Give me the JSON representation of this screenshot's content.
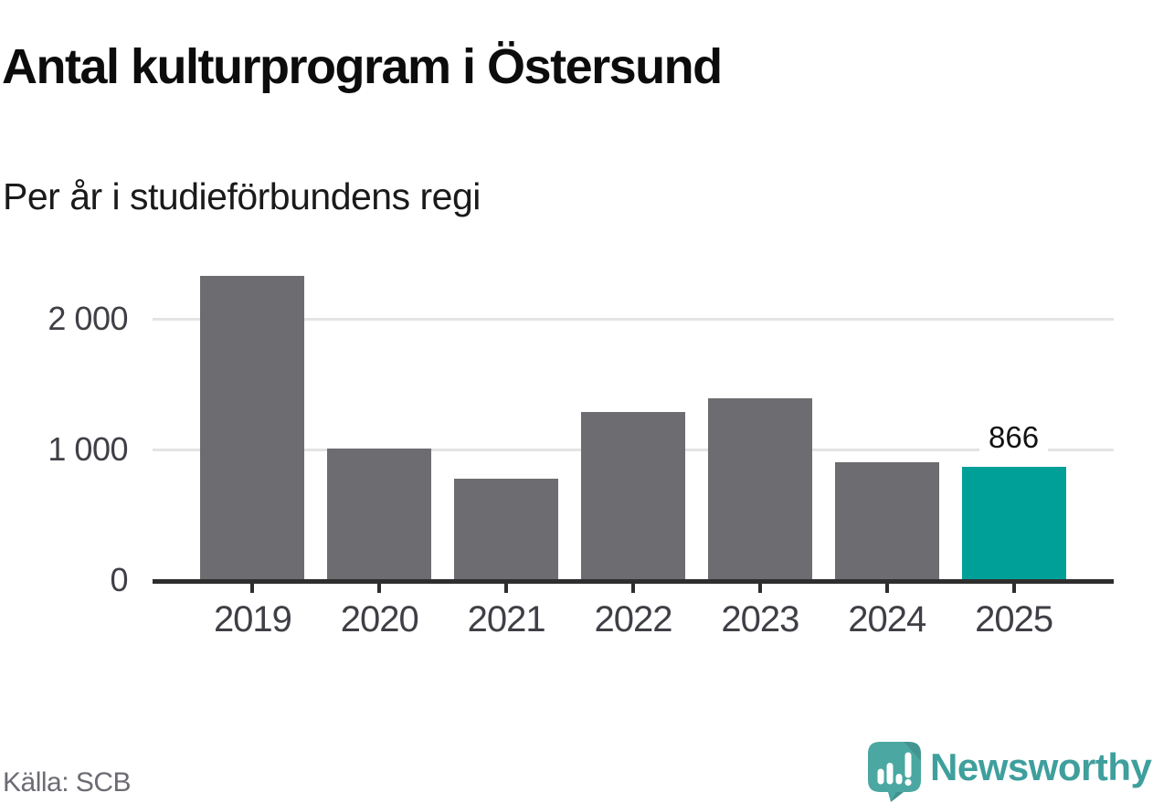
{
  "header": {
    "title": "Antal kulturprogram i Östersund",
    "subtitle": "Per år i studieförbundens regi"
  },
  "footer": {
    "source": "Källa: SCB",
    "brand_name": "Newsworthy"
  },
  "colors": {
    "bar": "#6d6d71",
    "highlight": "#00a099",
    "axis": "#2e2e2e",
    "gridline": "#e4e4e4",
    "tick_label": "#3f3f46",
    "source_text": "#6b6b73",
    "brand_teal": "#3f9f9d",
    "logo_bubble": "#4ba7a1"
  },
  "chart_data": {
    "type": "bar",
    "title": "Antal kulturprogram i Östersund",
    "subtitle": "Per år i studieförbundens regi",
    "categories": [
      "2019",
      "2020",
      "2021",
      "2022",
      "2023",
      "2024",
      "2025"
    ],
    "values": [
      2330,
      1005,
      775,
      1285,
      1395,
      900,
      866
    ],
    "highlight_index": 6,
    "highlight_label": "866",
    "xlabel": "",
    "ylabel": "",
    "yticks": [
      0,
      1000,
      2000
    ],
    "ytick_labels": [
      "0",
      "1 000",
      "2 000"
    ],
    "ylim": [
      0,
      2625
    ],
    "grid": "horizontal",
    "legend_position": "none",
    "bar_color": "#6d6d71",
    "highlight_color": "#00a099",
    "source": "Källa: SCB"
  }
}
